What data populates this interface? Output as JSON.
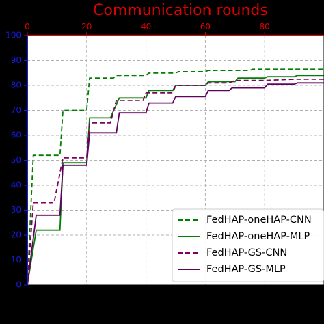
{
  "chart_data": {
    "type": "line",
    "xlabel": "Communication rounds",
    "ylabel": "",
    "xlim": [
      0,
      100
    ],
    "ylim": [
      0,
      100
    ],
    "xticks": [
      0,
      20,
      40,
      60,
      80
    ],
    "yticks": [
      0,
      10,
      20,
      30,
      40,
      50,
      60,
      70,
      80,
      90,
      100
    ],
    "grid": true,
    "legend_position": "bottom-right",
    "series": [
      {
        "name": "FedHAP-oneHAP-CNN",
        "color": "#008000",
        "style": "dashed",
        "points": [
          [
            0,
            0
          ],
          [
            2,
            52
          ],
          [
            11,
            52
          ],
          [
            12,
            70
          ],
          [
            20,
            70
          ],
          [
            21,
            83
          ],
          [
            29,
            83
          ],
          [
            30,
            84
          ],
          [
            40,
            84
          ],
          [
            41,
            85
          ],
          [
            50,
            85
          ],
          [
            51,
            85.5
          ],
          [
            60,
            85.5
          ],
          [
            61,
            86
          ],
          [
            75,
            86
          ],
          [
            76,
            86.5
          ],
          [
            100,
            86.5
          ]
        ]
      },
      {
        "name": "FedHAP-oneHAP-MLP",
        "color": "#008000",
        "style": "solid",
        "points": [
          [
            0,
            0
          ],
          [
            3,
            22
          ],
          [
            11,
            22
          ],
          [
            12,
            49
          ],
          [
            20,
            49
          ],
          [
            21,
            67
          ],
          [
            28,
            67
          ],
          [
            31,
            75
          ],
          [
            40,
            75
          ],
          [
            41,
            78
          ],
          [
            49,
            78
          ],
          [
            50,
            80
          ],
          [
            60,
            80
          ],
          [
            61,
            81.5
          ],
          [
            70,
            81.5
          ],
          [
            71,
            83
          ],
          [
            80,
            83
          ],
          [
            81,
            83.5
          ],
          [
            90,
            83.5
          ],
          [
            91,
            84
          ],
          [
            100,
            84
          ]
        ]
      },
      {
        "name": "FedHAP-GS-CNN",
        "color": "#800060",
        "style": "dashed",
        "points": [
          [
            0,
            0
          ],
          [
            2,
            33
          ],
          [
            9,
            33
          ],
          [
            12,
            51
          ],
          [
            20,
            51
          ],
          [
            21,
            65
          ],
          [
            28,
            65
          ],
          [
            30,
            74
          ],
          [
            39,
            74
          ],
          [
            40,
            77
          ],
          [
            49,
            77
          ],
          [
            50,
            80
          ],
          [
            60,
            80
          ],
          [
            61,
            81
          ],
          [
            68,
            81
          ],
          [
            70,
            82
          ],
          [
            80,
            82
          ],
          [
            90,
            82.5
          ],
          [
            100,
            82.5
          ]
        ]
      },
      {
        "name": "FedHAP-GS-MLP",
        "color": "#600060",
        "style": "solid",
        "points": [
          [
            0,
            0
          ],
          [
            3,
            28
          ],
          [
            11,
            28
          ],
          [
            12,
            48
          ],
          [
            20,
            48
          ],
          [
            21,
            61
          ],
          [
            30,
            61
          ],
          [
            31,
            69
          ],
          [
            40,
            69
          ],
          [
            41,
            73
          ],
          [
            49,
            73
          ],
          [
            50,
            75.5
          ],
          [
            60,
            75.5
          ],
          [
            61,
            78
          ],
          [
            68,
            78
          ],
          [
            69,
            79
          ],
          [
            80,
            79
          ],
          [
            81,
            80.5
          ],
          [
            90,
            80.5
          ],
          [
            91,
            81
          ],
          [
            100,
            81
          ]
        ]
      }
    ]
  }
}
